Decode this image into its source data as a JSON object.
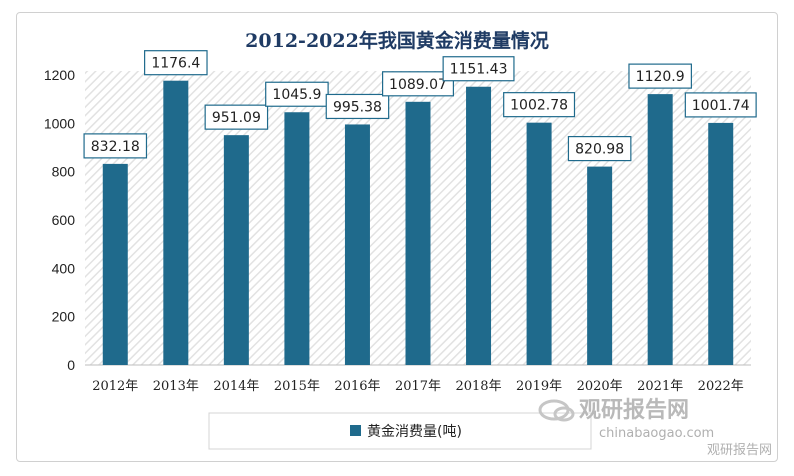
{
  "chart_data": {
    "type": "bar",
    "title": "2012-2022年我国黄金消费量情况",
    "categories": [
      "2012年",
      "2013年",
      "2014年",
      "2015年",
      "2016年",
      "2017年",
      "2018年",
      "2019年",
      "2020年",
      "2021年",
      "2022年"
    ],
    "series": [
      {
        "name": "黄金消费量(吨)",
        "color": "#1f6a8c",
        "values": [
          832.18,
          1176.4,
          951.09,
          1045.9,
          995.38,
          1089.07,
          1151.43,
          1002.78,
          820.98,
          1120.9,
          1001.74
        ]
      }
    ],
    "data_labels": [
      "832.18",
      "1176.4",
      "951.09",
      "1045.9",
      "995.38",
      "1089.07",
      "1151.43",
      "1002.78",
      "820.98",
      "1120.9",
      "1001.74"
    ],
    "ylim": [
      0,
      1200
    ],
    "yticks": [
      0,
      200,
      400,
      600,
      800,
      1000,
      1200
    ],
    "grid": false,
    "legend_position": "bottom"
  },
  "watermark": {
    "brand": "观研报告网",
    "url": "chinabaogao.com",
    "tag": "观研报告网"
  }
}
